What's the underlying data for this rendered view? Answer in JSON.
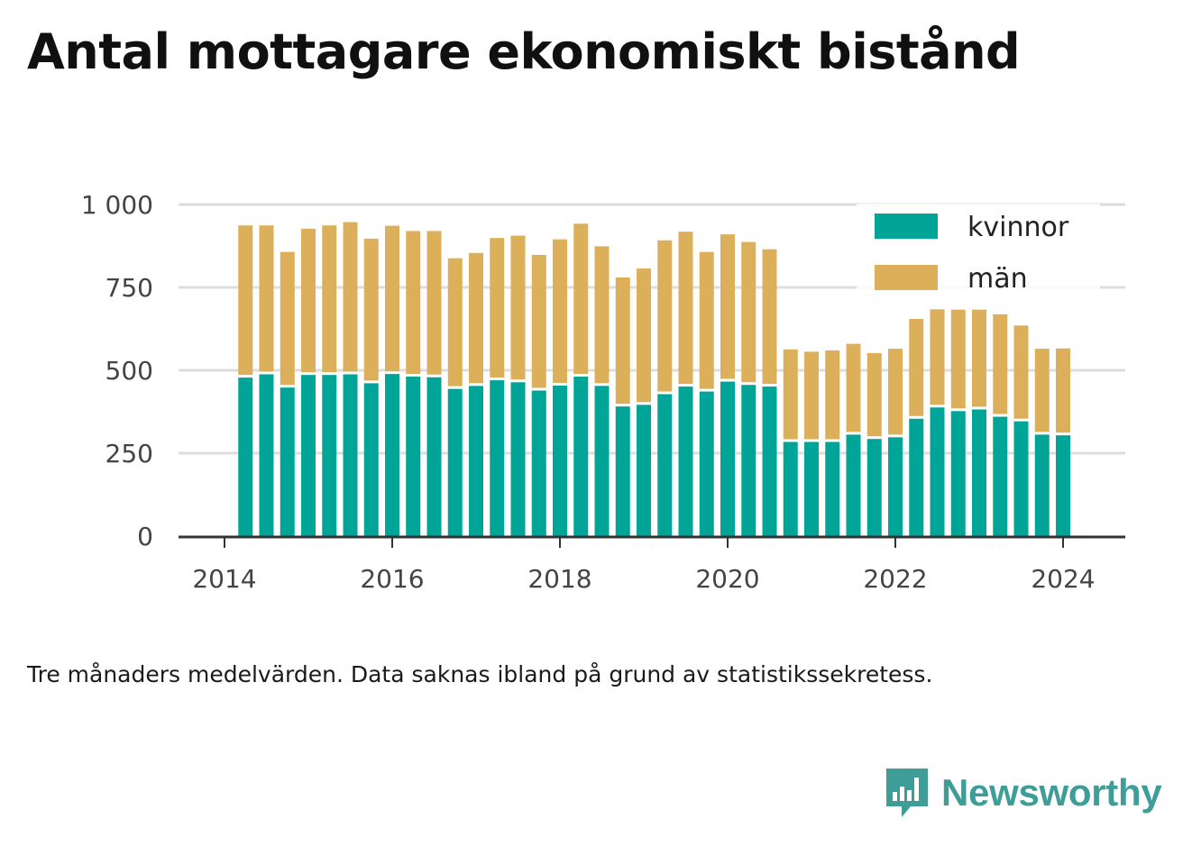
{
  "title": "Antal mottagare ekonomiskt bistånd",
  "note": "Tre månaders medelvärden. Data saknas ibland på grund av statistikssekretess.",
  "brand": {
    "name": "Newsworthy",
    "icon": "newsworthy-logo-icon"
  },
  "colors": {
    "kvinnor": "#00a598",
    "man": "#dcaf5a",
    "grid": "#dddddd",
    "axis": "#333333"
  },
  "chart_data": {
    "type": "bar",
    "stacked": true,
    "x_start": "2014-04",
    "x_step_months": 3,
    "x": [
      "2014-04",
      "2014-07",
      "2014-10",
      "2015-01",
      "2015-04",
      "2015-07",
      "2015-10",
      "2016-01",
      "2016-04",
      "2016-07",
      "2016-10",
      "2017-01",
      "2017-04",
      "2017-07",
      "2017-10",
      "2018-01",
      "2018-04",
      "2018-07",
      "2018-10",
      "2019-01",
      "2019-04",
      "2019-07",
      "2019-10",
      "2020-01",
      "2020-04",
      "2020-07",
      "2020-10",
      "2021-01",
      "2021-04",
      "2021-07",
      "2021-10",
      "2022-01",
      "2022-04",
      "2022-07",
      "2022-10",
      "2023-01",
      "2023-04",
      "2023-07",
      "2023-10",
      "2024-01"
    ],
    "series": [
      {
        "name": "kvinnor",
        "values": [
          482,
          492,
          452,
          490,
          490,
          492,
          465,
          493,
          485,
          483,
          448,
          457,
          474,
          468,
          443,
          458,
          485,
          457,
          395,
          400,
          432,
          455,
          440,
          470,
          460,
          455,
          288,
          288,
          288,
          310,
          297,
          302,
          358,
          392,
          381,
          386,
          364,
          350,
          310,
          308
        ]
      },
      {
        "name": "män",
        "values": [
          455,
          445,
          405,
          437,
          447,
          455,
          432,
          443,
          435,
          437,
          390,
          397,
          425,
          438,
          405,
          437,
          457,
          417,
          385,
          407,
          460,
          463,
          417,
          440,
          427,
          410,
          275,
          268,
          272,
          270,
          255,
          263,
          297,
          292,
          302,
          297,
          305,
          285,
          255,
          258
        ]
      }
    ],
    "xtick_labels": [
      "2014",
      "2016",
      "2018",
      "2020",
      "2022",
      "2024"
    ],
    "ytick_labels": [
      "0",
      "250",
      "500",
      "750",
      "1 000"
    ],
    "ylim": [
      0,
      1000
    ],
    "grid": true,
    "legend_position": "top-right",
    "legend": [
      "kvinnor",
      "män"
    ]
  }
}
